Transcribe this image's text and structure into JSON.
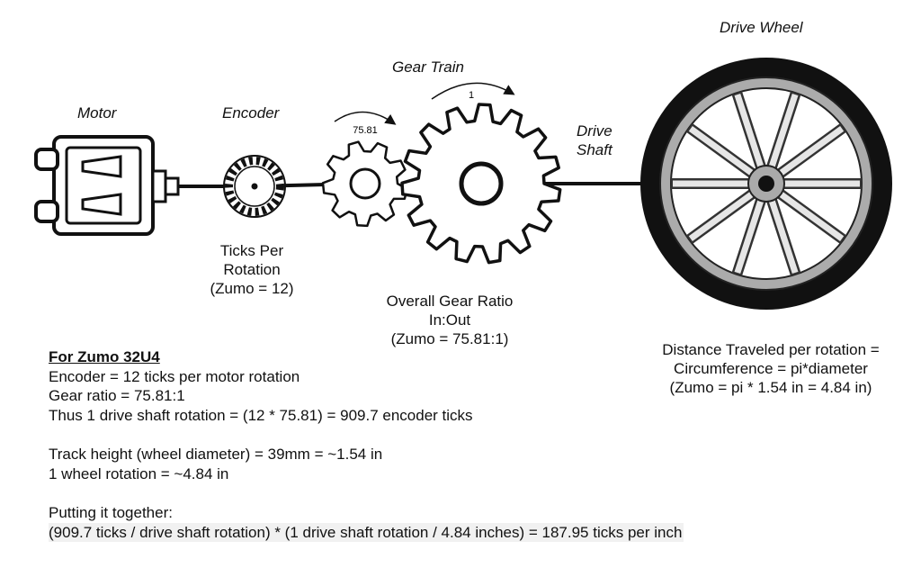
{
  "labels": {
    "motor": "Motor",
    "encoder": "Encoder",
    "gear_train": "Gear Train",
    "drive_shaft": [
      "Drive",
      "Shaft"
    ],
    "drive_wheel": "Drive Wheel",
    "small_gear_ratio": "75.81",
    "large_gear_ratio": "1"
  },
  "captions": {
    "encoder": [
      "Ticks Per",
      "Rotation",
      "(Zumo = 12)"
    ],
    "gear": [
      "Overall Gear Ratio",
      "In:Out",
      "(Zumo = 75.81:1)"
    ],
    "wheel": [
      "Distance Traveled per rotation =",
      "Circumference = pi*diameter",
      "(Zumo = pi * 1.54 in = 4.84 in)"
    ]
  },
  "notes": {
    "header": "For Zumo 32U4",
    "block1": [
      "Encoder = 12 ticks per motor rotation",
      "Gear ratio = 75.81:1",
      "Thus 1 drive shaft rotation = (12 * 75.81) = 909.7 encoder ticks"
    ],
    "block2": [
      "Track height (wheel diameter) = 39mm = ~1.54 in",
      "1 wheel rotation = ~4.84 in"
    ],
    "block3": [
      "Putting it together:",
      "(909.7 ticks / drive shaft rotation) * (1 drive shaft rotation / 4.84 inches) = 187.95 ticks per inch"
    ]
  }
}
